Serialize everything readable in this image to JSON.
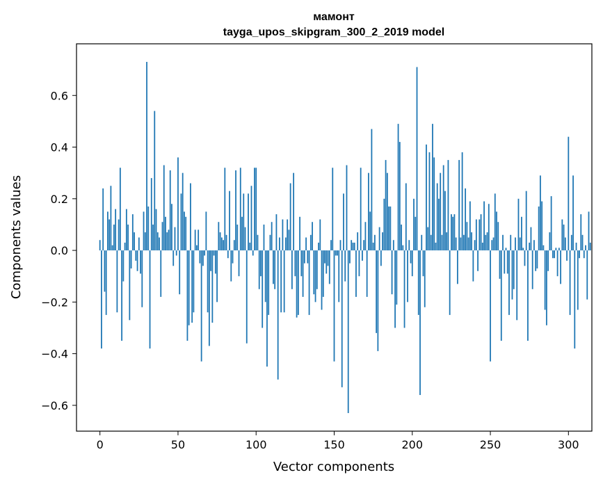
{
  "chart_data": {
    "type": "bar",
    "title": "мамонт",
    "subtitle": "tayga_upos_skipgram_300_2_2019 model",
    "xlabel": "Vector components",
    "ylabel": "Components values",
    "xlim": [
      -15,
      315
    ],
    "ylim": [
      -0.7,
      0.8
    ],
    "xticks": [
      0,
      50,
      100,
      150,
      200,
      250,
      300
    ],
    "xtick_labels": [
      "0",
      "50",
      "100",
      "150",
      "200",
      "250",
      "300"
    ],
    "yticks": [
      -0.6,
      -0.4,
      -0.2,
      0.0,
      0.2,
      0.4,
      0.6
    ],
    "ytick_labels": [
      "−0.6",
      "−0.4",
      "−0.2",
      "0.0",
      "0.2",
      "0.4",
      "0.6"
    ],
    "grid": false,
    "bar_color": "#1f77b4",
    "values": [
      0.04,
      -0.38,
      0.24,
      -0.16,
      -0.25,
      0.15,
      0.12,
      0.25,
      0.02,
      0.1,
      0.16,
      -0.24,
      0.12,
      0.32,
      -0.35,
      -0.12,
      0.03,
      0.16,
      0.1,
      -0.27,
      -0.07,
      0.14,
      0.07,
      -0.04,
      -0.08,
      0.05,
      -0.09,
      -0.22,
      0.15,
      0.07,
      0.73,
      0.17,
      -0.38,
      0.28,
      0.1,
      0.54,
      0.16,
      0.07,
      0.05,
      -0.18,
      0.11,
      0.33,
      0.13,
      0.07,
      0.08,
      0.31,
      0.18,
      -0.06,
      0.09,
      -0.02,
      0.36,
      -0.17,
      0.22,
      0.3,
      0.15,
      0.13,
      -0.35,
      -0.29,
      0.26,
      -0.28,
      -0.24,
      0.08,
      0.02,
      0.08,
      -0.05,
      -0.43,
      -0.06,
      -0.02,
      0.15,
      -0.24,
      -0.37,
      -0.08,
      -0.28,
      -0.02,
      -0.09,
      -0.2,
      0.11,
      0.07,
      0.05,
      0.04,
      0.32,
      0.06,
      -0.03,
      0.23,
      -0.12,
      -0.05,
      0.04,
      0.31,
      0.1,
      -0.1,
      0.32,
      0.13,
      0.22,
      0.09,
      -0.36,
      0.22,
      0.03,
      0.25,
      -0.02,
      0.32,
      0.32,
      0.06,
      -0.15,
      -0.1,
      -0.3,
      0.1,
      -0.2,
      -0.45,
      -0.25,
      0.06,
      0.11,
      -0.13,
      -0.15,
      0.14,
      -0.5,
      0.05,
      -0.24,
      0.12,
      -0.24,
      0.05,
      0.12,
      0.08,
      0.26,
      -0.15,
      0.3,
      -0.1,
      -0.26,
      -0.25,
      0.13,
      -0.1,
      -0.18,
      -0.05,
      0.05,
      -0.05,
      -0.25,
      0.06,
      0.11,
      -0.17,
      -0.2,
      -0.15,
      0.03,
      0.12,
      -0.23,
      -0.18,
      -0.05,
      -0.09,
      -0.06,
      -0.13,
      0.04,
      0.32,
      -0.43,
      -0.02,
      -0.02,
      -0.2,
      0.04,
      -0.53,
      0.22,
      -0.12,
      0.33,
      -0.63,
      -0.05,
      0.04,
      0.03,
      0.03,
      -0.18,
      0.07,
      -0.1,
      0.32,
      -0.04,
      0.04,
      0.11,
      -0.18,
      0.3,
      0.15,
      0.47,
      0.03,
      0.06,
      -0.32,
      -0.39,
      0.09,
      -0.06,
      0.07,
      0.2,
      0.35,
      0.3,
      0.17,
      0.17,
      -0.17,
      0.04,
      -0.3,
      -0.21,
      0.49,
      0.42,
      0.1,
      0.02,
      -0.3,
      0.26,
      -0.2,
      0.04,
      -0.05,
      -0.1,
      0.2,
      0.13,
      0.71,
      -0.25,
      -0.56,
      0.06,
      -0.1,
      -0.22,
      0.41,
      0.09,
      0.38,
      0.06,
      0.49,
      0.36,
      0.03,
      0.26,
      0.2,
      0.3,
      0.06,
      0.33,
      0.23,
      0.07,
      0.35,
      -0.25,
      0.14,
      0.13,
      0.14,
      0.05,
      -0.13,
      0.35,
      0.05,
      0.38,
      0.06,
      0.24,
      0.11,
      0.05,
      0.19,
      0.07,
      -0.12,
      0.04,
      0.12,
      -0.08,
      0.12,
      0.14,
      0.03,
      0.19,
      0.06,
      0.07,
      0.18,
      -0.43,
      0.04,
      0.05,
      0.22,
      0.15,
      0.11,
      -0.11,
      -0.35,
      0.06,
      -0.09,
      0.01,
      -0.09,
      -0.25,
      0.06,
      -0.19,
      -0.15,
      0.05,
      -0.27,
      0.2,
      0.05,
      0.13,
      0.01,
      -0.06,
      0.23,
      -0.35,
      0.03,
      0.09,
      -0.15,
      0.04,
      -0.08,
      -0.07,
      0.17,
      0.29,
      0.19,
      0.02,
      -0.23,
      -0.29,
      -0.08,
      0.07,
      0.21,
      -0.03,
      -0.03,
      0.01,
      -0.1,
      0.01,
      -0.13,
      0.12,
      0.1,
      0.05,
      -0.04,
      0.44,
      -0.25,
      0.06,
      0.29,
      -0.38,
      0.03,
      -0.23,
      -0.03,
      0.14,
      0.06,
      -0.03,
      0.02,
      -0.19,
      0.15,
      0.03
    ]
  }
}
